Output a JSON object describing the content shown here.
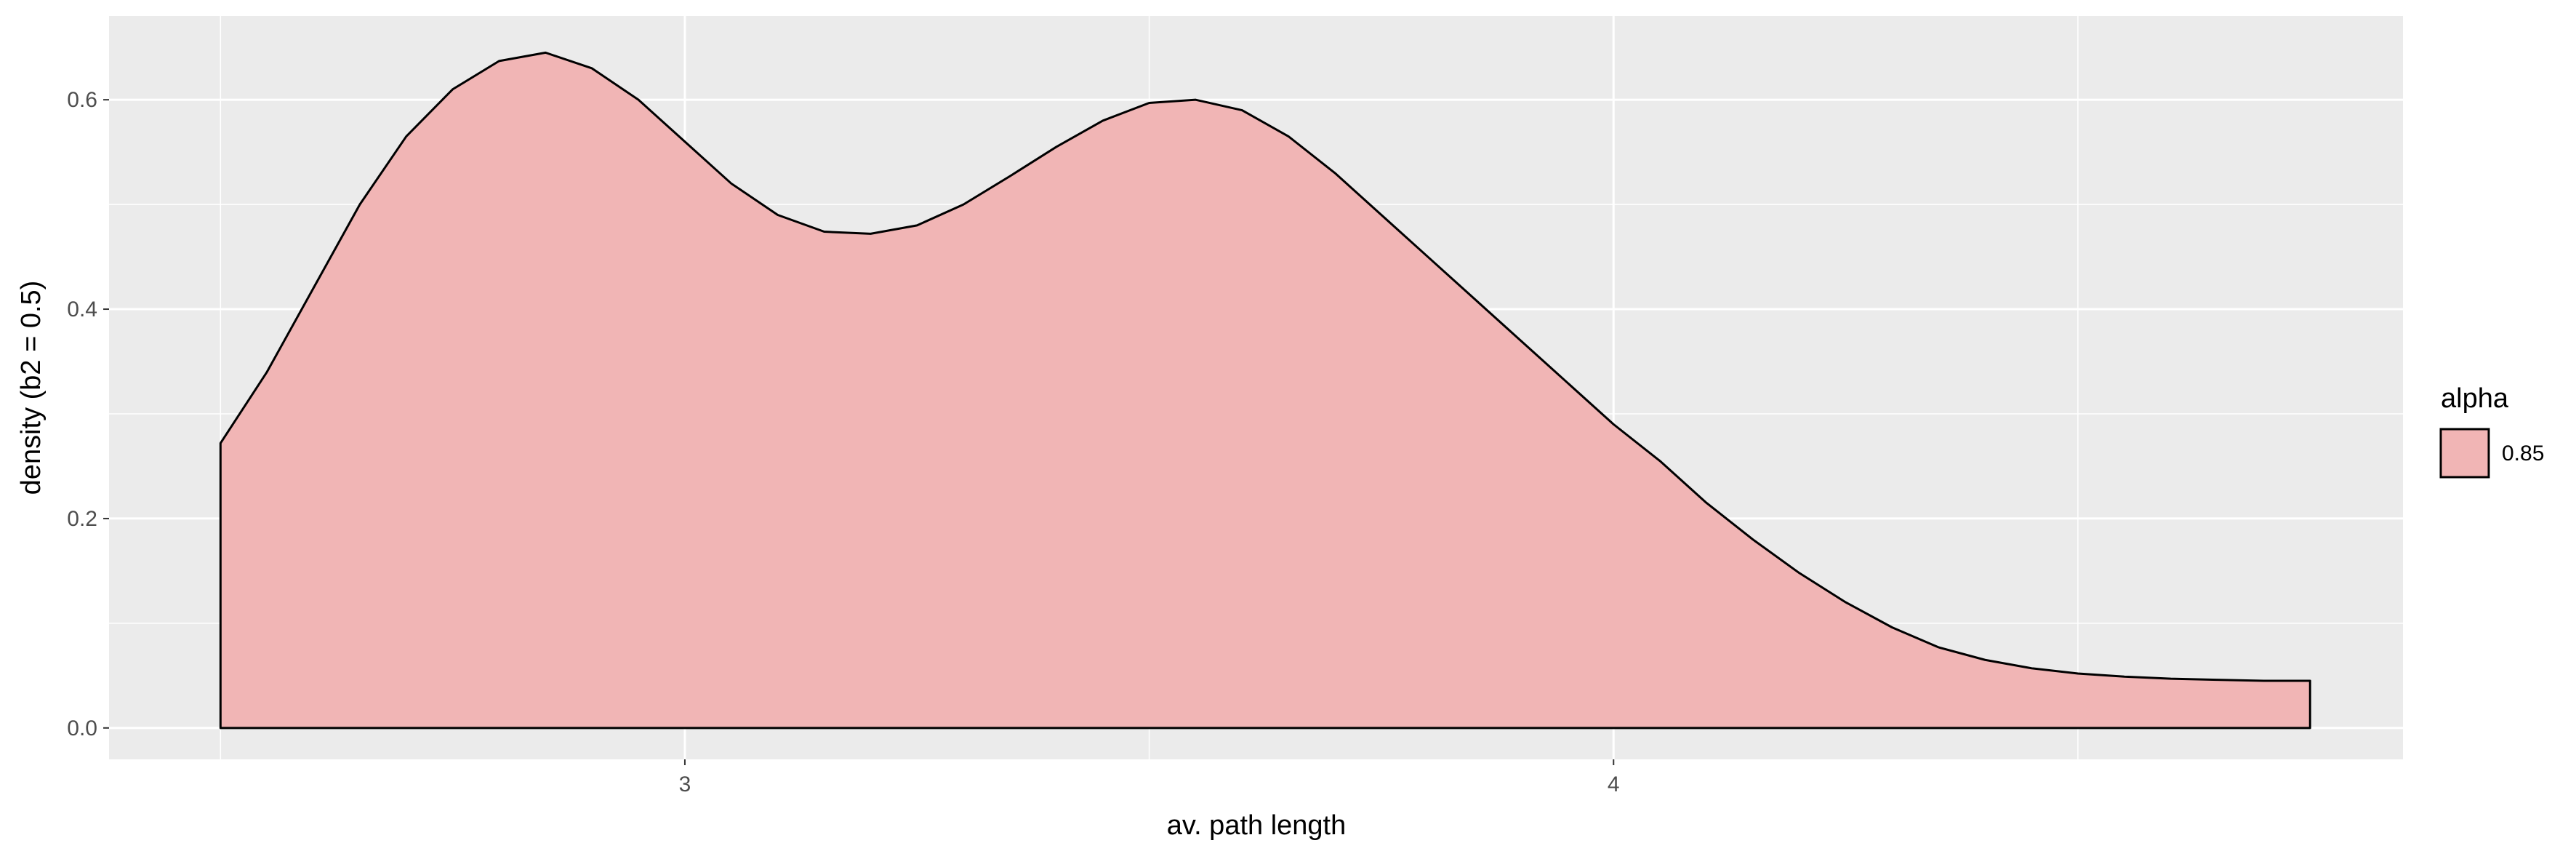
{
  "chart_data": {
    "type": "area",
    "title": "",
    "xlabel": "av. path length",
    "ylabel": "density (b2 = 0.5)",
    "xlim": [
      2.38,
      4.85
    ],
    "ylim": [
      -0.03,
      0.68
    ],
    "x_ticks": [
      3,
      4
    ],
    "x_tick_labels": [
      "3",
      "4"
    ],
    "x_minor_ticks": [
      2.5,
      3.5,
      4.5
    ],
    "y_ticks": [
      0.0,
      0.2,
      0.4,
      0.6
    ],
    "y_tick_labels": [
      "0.0",
      "0.2",
      "0.4",
      "0.6"
    ],
    "y_minor_ticks": [
      0.1,
      0.3,
      0.5
    ],
    "grid": true,
    "legend": {
      "title": "alpha",
      "placement": "right",
      "entries": [
        {
          "label": "0.85"
        }
      ]
    },
    "series": [
      {
        "x": [
          2.5,
          2.55,
          2.6,
          2.65,
          2.7,
          2.75,
          2.8,
          2.85,
          2.9,
          2.95,
          3.0,
          3.05,
          3.1,
          3.15,
          3.2,
          3.25,
          3.3,
          3.35,
          3.4,
          3.45,
          3.5,
          3.55,
          3.6,
          3.65,
          3.7,
          3.75,
          3.8,
          3.85,
          3.9,
          3.95,
          4.0,
          4.05,
          4.1,
          4.15,
          4.2,
          4.25,
          4.3,
          4.35,
          4.4,
          4.45,
          4.5,
          4.55,
          4.6,
          4.65,
          4.7,
          4.75
        ],
        "y": [
          0.272,
          0.34,
          0.42,
          0.5,
          0.565,
          0.61,
          0.637,
          0.645,
          0.63,
          0.6,
          0.56,
          0.52,
          0.49,
          0.474,
          0.472,
          0.48,
          0.5,
          0.527,
          0.555,
          0.58,
          0.597,
          0.6,
          0.59,
          0.565,
          0.53,
          0.49,
          0.45,
          0.41,
          0.37,
          0.33,
          0.29,
          0.255,
          0.215,
          0.18,
          0.148,
          0.12,
          0.096,
          0.077,
          0.065,
          0.057,
          0.052,
          0.049,
          0.047,
          0.046,
          0.045,
          0.045
        ],
        "fill": "#f1b5b5",
        "stroke": "#000000"
      }
    ]
  }
}
